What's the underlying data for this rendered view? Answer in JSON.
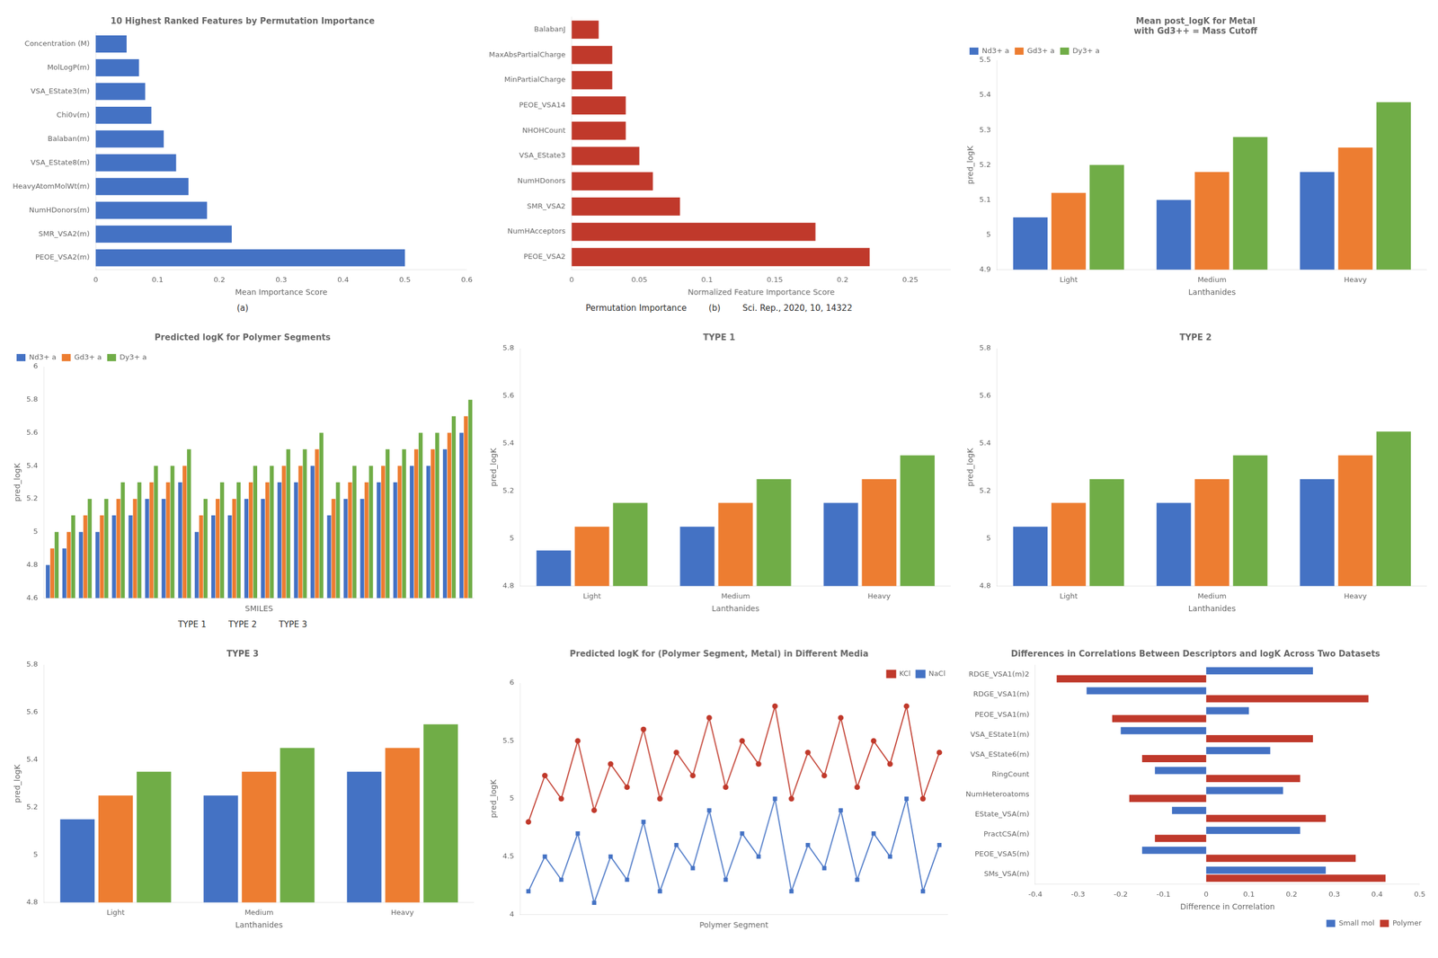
{
  "chart_data": [
    {
      "type": "bar",
      "orientation": "horizontal",
      "title": "10 Highest Ranked Features by Permutation Importance",
      "xlabel": "Mean Importance Score",
      "categories": [
        "PEOE_VSA2(m)",
        "SMR_VSA2(m)",
        "NumHDonors(m)",
        "HeavyAtomMolWt(m)",
        "VSA_EState8(m)",
        "Balaban(m)",
        "Chi0v(m)",
        "VSA_EState3(m)",
        "MolLogP(m)",
        "Concentration (M)"
      ],
      "values": [
        0.5,
        0.22,
        0.18,
        0.15,
        0.13,
        0.11,
        0.09,
        0.08,
        0.07,
        0.05
      ],
      "color": "#4472c4",
      "xlim": [
        0,
        0.6
      ],
      "xticks": [
        0,
        0.1,
        0.2,
        0.3,
        0.4,
        0.5,
        0.6
      ],
      "grid": false,
      "annotations": [
        "(a)"
      ]
    },
    {
      "type": "bar",
      "orientation": "horizontal",
      "xlabel": "Normalized Feature Importance Score",
      "categories": [
        "PEOE_VSA2",
        "NumHAcceptors",
        "SMR_VSA2",
        "NumHDonors",
        "VSA_EState3",
        "NHOHCount",
        "PEOE_VSA14",
        "MinPartialCharge",
        "MaxAbsPartialCharge",
        "BalabanJ"
      ],
      "values": [
        0.22,
        0.18,
        0.08,
        0.06,
        0.05,
        0.04,
        0.04,
        0.03,
        0.03,
        0.02
      ],
      "color": "#c0392b",
      "xlim": [
        0,
        0.28
      ],
      "xticks": [
        0,
        0.05,
        0.1,
        0.15,
        0.2,
        0.25
      ],
      "grid": false,
      "annotations": [
        "Permutation Importance",
        "(b)",
        "Sci. Rep., 2020, 10, 14322"
      ]
    },
    {
      "type": "bar",
      "title": "Mean post_logK for Metal\nwith Gd3++ = Mass Cutoff",
      "xlabel": "Lanthanides",
      "ylabel": "pred_logK",
      "categories": [
        "Light",
        "Medium",
        "Heavy"
      ],
      "series": [
        {
          "name": "Nd3+ a",
          "color": "#4472c4",
          "values": [
            5.05,
            5.1,
            5.18
          ]
        },
        {
          "name": "Gd3+ a",
          "color": "#ed7d31",
          "values": [
            5.12,
            5.18,
            5.25
          ]
        },
        {
          "name": "Dy3+ a",
          "color": "#70ad47",
          "values": [
            5.2,
            5.28,
            5.38
          ]
        }
      ],
      "ylim": [
        4.9,
        5.5
      ],
      "yticks": [
        4.9,
        5.0,
        5.1,
        5.2,
        5.3,
        5.4,
        5.5
      ],
      "legend": "upper left",
      "grid": false
    },
    {
      "type": "bar",
      "title": "Predicted logK for Polymer Segments",
      "xlabel": "SMILES",
      "ylabel": "pred_logK",
      "categories": [
        null,
        null,
        null,
        null,
        null,
        null,
        null,
        null,
        null,
        null,
        null,
        null,
        null,
        null,
        null,
        null,
        null,
        null,
        null,
        null,
        null,
        null,
        null,
        null,
        null,
        null
      ],
      "series": [
        {
          "name": "Nd3+ a",
          "color": "#4472c4",
          "values": [
            4.8,
            4.9,
            5.0,
            5.0,
            5.1,
            5.1,
            5.2,
            5.2,
            5.3,
            5.0,
            5.1,
            5.1,
            5.2,
            5.2,
            5.3,
            5.3,
            5.4,
            5.1,
            5.2,
            5.2,
            5.3,
            5.3,
            5.4,
            5.4,
            5.5,
            5.6
          ]
        },
        {
          "name": "Gd3+ a",
          "color": "#ed7d31",
          "values": [
            4.9,
            5.0,
            5.1,
            5.1,
            5.2,
            5.2,
            5.3,
            5.3,
            5.4,
            5.1,
            5.2,
            5.2,
            5.3,
            5.3,
            5.4,
            5.4,
            5.5,
            5.2,
            5.3,
            5.3,
            5.4,
            5.4,
            5.5,
            5.5,
            5.6,
            5.7
          ]
        },
        {
          "name": "Dy3+ a",
          "color": "#70ad47",
          "values": [
            5.0,
            5.1,
            5.2,
            5.2,
            5.3,
            5.3,
            5.4,
            5.4,
            5.5,
            5.2,
            5.3,
            5.3,
            5.4,
            5.4,
            5.5,
            5.5,
            5.6,
            5.3,
            5.4,
            5.4,
            5.5,
            5.5,
            5.6,
            5.6,
            5.7,
            5.8
          ]
        }
      ],
      "ylim": [
        4.6,
        6.0
      ],
      "yticks": [
        4.6,
        4.8,
        5.0,
        5.2,
        5.4,
        5.6,
        5.8,
        6.0
      ],
      "tick_labels": "y",
      "legend": "upper left",
      "grid": false,
      "annotations": [
        "TYPE 1",
        "TYPE 2",
        "TYPE 3"
      ]
    },
    {
      "type": "bar",
      "title": "TYPE 1",
      "xlabel": "Lanthanides",
      "ylabel": "pred_logK",
      "categories": [
        "Light",
        "Medium",
        "Heavy"
      ],
      "series": [
        {
          "color": "#4472c4",
          "values": [
            4.95,
            5.05,
            5.15
          ]
        },
        {
          "color": "#ed7d31",
          "values": [
            5.05,
            5.15,
            5.25
          ]
        },
        {
          "color": "#70ad47",
          "values": [
            5.15,
            5.25,
            5.35
          ]
        }
      ],
      "ylim": [
        4.8,
        5.8
      ],
      "yticks": [
        4.8,
        5.0,
        5.2,
        5.4,
        5.6,
        5.8
      ],
      "grid": false
    },
    {
      "type": "bar",
      "title": "TYPE 2",
      "xlabel": "Lanthanides",
      "ylabel": "pred_logK",
      "categories": [
        "Light",
        "Medium",
        "Heavy"
      ],
      "series": [
        {
          "color": "#4472c4",
          "values": [
            5.05,
            5.15,
            5.25
          ]
        },
        {
          "color": "#ed7d31",
          "values": [
            5.15,
            5.25,
            5.35
          ]
        },
        {
          "color": "#70ad47",
          "values": [
            5.25,
            5.35,
            5.45
          ]
        }
      ],
      "ylim": [
        4.8,
        5.8
      ],
      "yticks": [
        4.8,
        5.0,
        5.2,
        5.4,
        5.6,
        5.8
      ],
      "grid": false
    },
    {
      "type": "bar",
      "title": "TYPE 3",
      "xlabel": "Lanthanides",
      "ylabel": "pred_logK",
      "categories": [
        "Light",
        "Medium",
        "Heavy"
      ],
      "series": [
        {
          "color": "#4472c4",
          "values": [
            5.15,
            5.25,
            5.35
          ]
        },
        {
          "color": "#ed7d31",
          "values": [
            5.25,
            5.35,
            5.45
          ]
        },
        {
          "color": "#70ad47",
          "values": [
            5.35,
            5.45,
            5.55
          ]
        }
      ],
      "ylim": [
        4.8,
        5.8
      ],
      "yticks": [
        4.8,
        5.0,
        5.2,
        5.4,
        5.6,
        5.8
      ],
      "grid": false
    },
    {
      "type": "line",
      "title": "Predicted logK for (Polymer Segment, Metal) in Different Media",
      "xlabel": "Polymer Segment",
      "ylabel": "pred_logK",
      "categories": [
        null,
        null,
        null,
        null,
        null,
        null,
        null,
        null,
        null,
        null,
        null,
        null,
        null,
        null,
        null,
        null,
        null,
        null,
        null,
        null,
        null,
        null,
        null,
        null,
        null,
        null
      ],
      "series": [
        {
          "name": "KCl",
          "color": "#c0392b",
          "marker": "circle",
          "values": [
            4.8,
            5.2,
            5.0,
            5.5,
            4.9,
            5.3,
            5.1,
            5.6,
            5.0,
            5.4,
            5.2,
            5.7,
            5.1,
            5.5,
            5.3,
            5.8,
            5.0,
            5.4,
            5.2,
            5.7,
            5.1,
            5.5,
            5.3,
            5.8,
            5.0,
            5.4
          ]
        },
        {
          "name": "NaCl",
          "color": "#4472c4",
          "marker": "square",
          "values": [
            4.2,
            4.5,
            4.3,
            4.7,
            4.1,
            4.5,
            4.3,
            4.8,
            4.2,
            4.6,
            4.4,
            4.9,
            4.3,
            4.7,
            4.5,
            5.0,
            4.2,
            4.6,
            4.4,
            4.9,
            4.3,
            4.7,
            4.5,
            5.0,
            4.2,
            4.6
          ]
        }
      ],
      "ylim": [
        4.0,
        6.0
      ],
      "yticks": [
        4.0,
        4.5,
        5.0,
        5.5,
        6.0
      ],
      "tick_labels": "y",
      "legend": "upper right",
      "grid": false
    },
    {
      "type": "bar",
      "orientation": "horizontal",
      "title": "Differences in Correlations Between Descriptors and logK Across Two Datasets",
      "xlabel": "Difference in Correlation",
      "categories": [
        "SMs_VSA(m)",
        "PEOE_VSA5(m)",
        "PractCSA(m)",
        "EState_VSA(m)",
        "NumHeteroatoms",
        "RingCount",
        "VSA_EState6(m)",
        "VSA_EState1(m)",
        "PEOE_VSA1(m)",
        "RDGE_VSA1(m)",
        "RDGE_VSA1(m)2"
      ],
      "series": [
        {
          "name": "Small mol",
          "color": "#4472c4",
          "values": [
            0.28,
            -0.15,
            0.22,
            -0.08,
            0.18,
            -0.12,
            0.15,
            -0.2,
            0.1,
            -0.28,
            0.25
          ]
        },
        {
          "name": "Polymer",
          "color": "#c0392b",
          "values": [
            0.42,
            0.35,
            -0.12,
            0.28,
            -0.18,
            0.22,
            -0.15,
            0.25,
            -0.22,
            0.38,
            -0.35
          ]
        }
      ],
      "xlim": [
        -0.4,
        0.5
      ],
      "xticks": [
        -0.4,
        -0.3,
        -0.2,
        -0.1,
        0,
        0.1,
        0.2,
        0.3,
        0.4,
        0.5
      ],
      "legend": "lower right",
      "grid": false
    }
  ]
}
